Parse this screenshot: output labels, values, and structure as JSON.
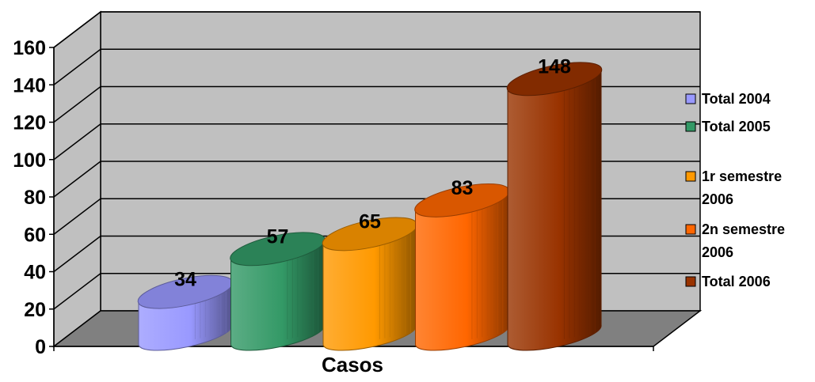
{
  "chart_data": {
    "type": "bar",
    "style": "3d-cylinder",
    "categories": [
      "Casos"
    ],
    "xlabel": "Casos",
    "ylabel": "",
    "title": "",
    "ylim": [
      0,
      160
    ],
    "yticks": [
      0,
      20,
      40,
      60,
      80,
      100,
      120,
      140,
      160
    ],
    "grid": true,
    "legend_position": "right",
    "series": [
      {
        "name": "Total 2004",
        "values": [
          34
        ],
        "color": "#9999ff"
      },
      {
        "name": "Total 2005",
        "values": [
          57
        ],
        "color": "#339966"
      },
      {
        "name": "1r semestre 2006",
        "values": [
          65
        ],
        "color": "#ff9900",
        "legend_lines": [
          "1r semestre",
          "2006"
        ]
      },
      {
        "name": "2n semestre 2006",
        "values": [
          83
        ],
        "color": "#ff6600",
        "legend_lines": [
          "2n semestre",
          "2006"
        ]
      },
      {
        "name": "Total 2006",
        "values": [
          148
        ],
        "color": "#993300"
      }
    ],
    "colors": {
      "wall": "#c0c0c0",
      "floor": "#808080",
      "gridline": "#000000"
    }
  }
}
